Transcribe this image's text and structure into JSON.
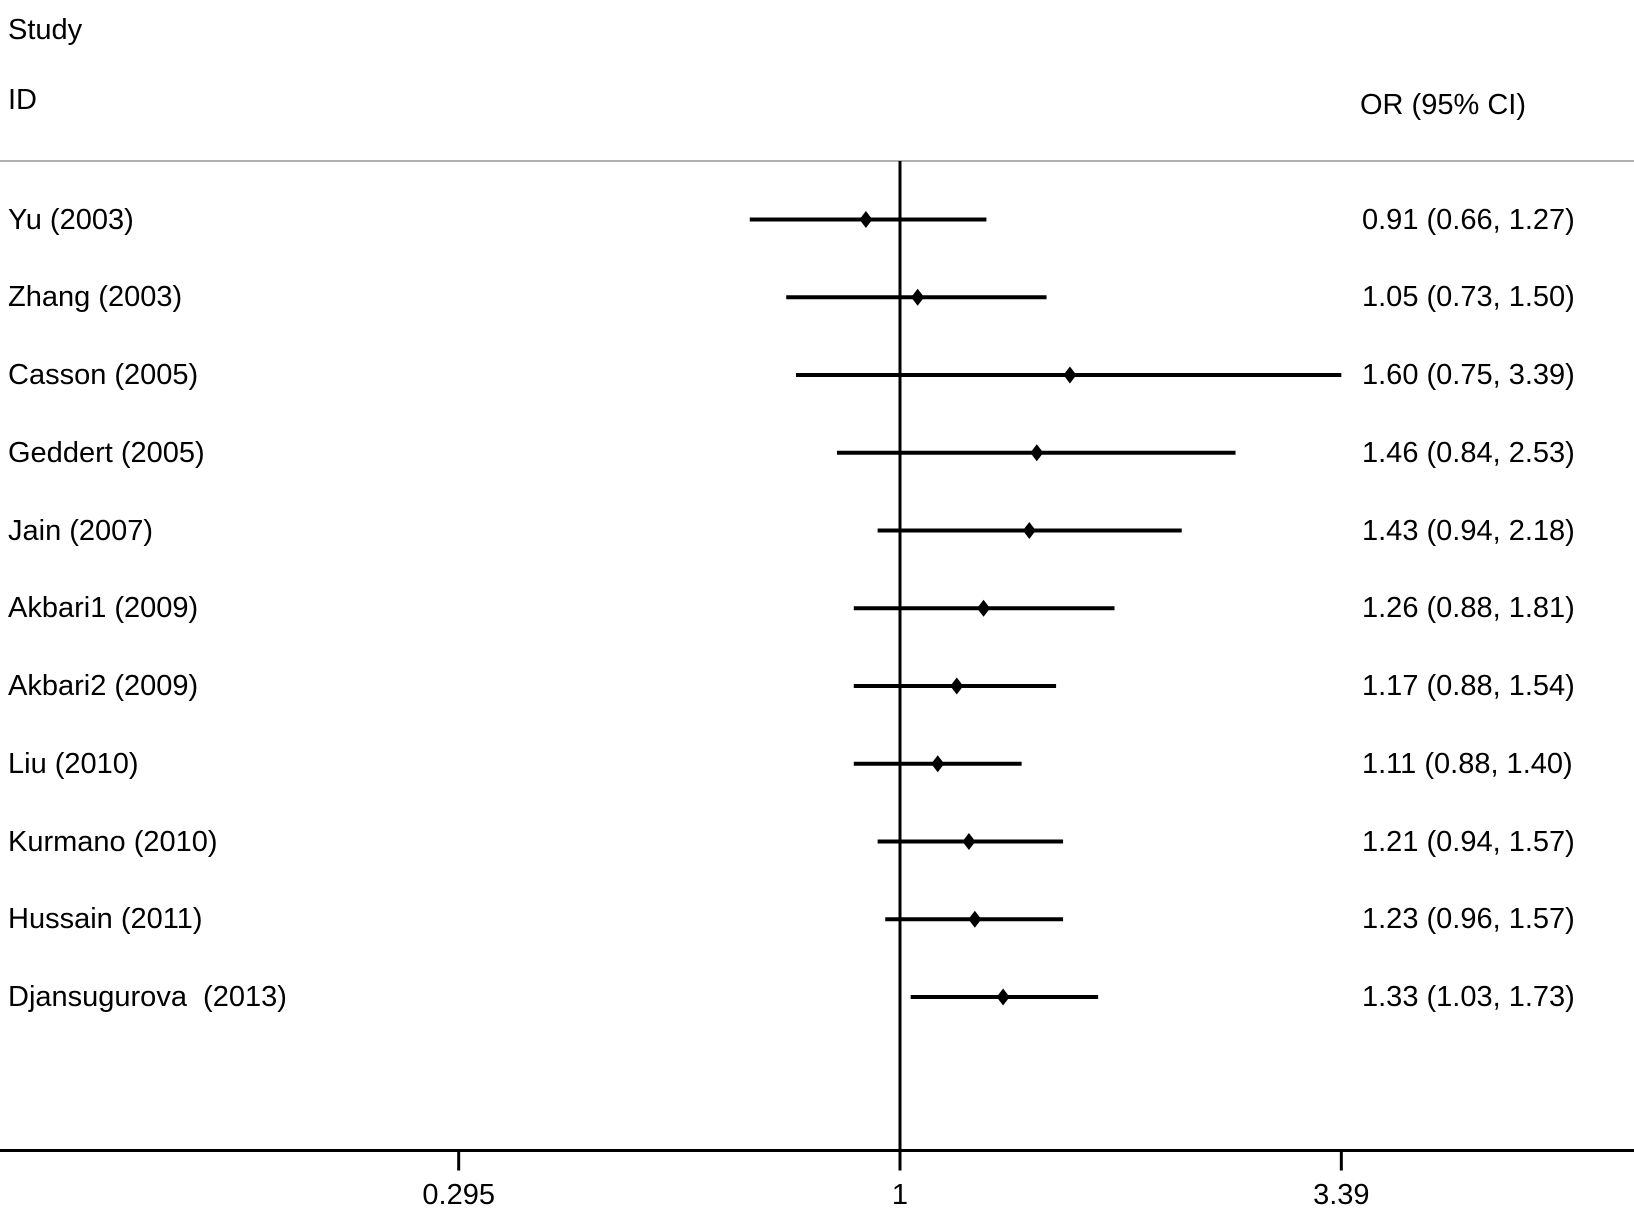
{
  "header": {
    "study_line1": "Study",
    "study_line2": "ID",
    "or_column": "OR (95% CI)"
  },
  "chart_data": {
    "type": "forest",
    "x_scale": "log",
    "title": "",
    "axis": {
      "ticks": [
        0.295,
        1,
        3.39
      ],
      "tick_labels": [
        "0.295",
        "1",
        "3.39"
      ],
      "reference_line": 1,
      "xlim": [
        0.21,
        5.2
      ]
    },
    "colors": {
      "line": "#000000",
      "marker": "#000000",
      "header_rule": "#b0b0b0",
      "text": "#000000",
      "background": "#ffffff"
    },
    "studies": [
      {
        "id": "Yu (2003)",
        "or": 0.91,
        "ci_low": 0.66,
        "ci_high": 1.27,
        "or_label": "0.91 (0.66, 1.27)"
      },
      {
        "id": "Zhang (2003)",
        "or": 1.05,
        "ci_low": 0.73,
        "ci_high": 1.5,
        "or_label": "1.05 (0.73, 1.50)"
      },
      {
        "id": "Casson (2005)",
        "or": 1.6,
        "ci_low": 0.75,
        "ci_high": 3.39,
        "or_label": "1.60 (0.75, 3.39)"
      },
      {
        "id": "Geddert (2005)",
        "or": 1.46,
        "ci_low": 0.84,
        "ci_high": 2.53,
        "or_label": "1.46 (0.84, 2.53)"
      },
      {
        "id": "Jain (2007)",
        "or": 1.43,
        "ci_low": 0.94,
        "ci_high": 2.18,
        "or_label": "1.43 (0.94, 2.18)"
      },
      {
        "id": "Akbari1 (2009)",
        "or": 1.26,
        "ci_low": 0.88,
        "ci_high": 1.81,
        "or_label": "1.26 (0.88, 1.81)"
      },
      {
        "id": "Akbari2 (2009)",
        "or": 1.17,
        "ci_low": 0.88,
        "ci_high": 1.54,
        "or_label": "1.17 (0.88, 1.54)"
      },
      {
        "id": "Liu (2010)",
        "or": 1.11,
        "ci_low": 0.88,
        "ci_high": 1.4,
        "or_label": "1.11 (0.88, 1.40)"
      },
      {
        "id": "Kurmano (2010)",
        "or": 1.21,
        "ci_low": 0.94,
        "ci_high": 1.57,
        "or_label": "1.21 (0.94, 1.57)"
      },
      {
        "id": "Hussain (2011)",
        "or": 1.23,
        "ci_low": 0.96,
        "ci_high": 1.57,
        "or_label": "1.23 (0.96, 1.57)"
      },
      {
        "id": "Djansugurova  (2013)",
        "or": 1.33,
        "ci_low": 1.03,
        "ci_high": 1.73,
        "or_label": "1.33 (1.03, 1.73)"
      }
    ]
  }
}
